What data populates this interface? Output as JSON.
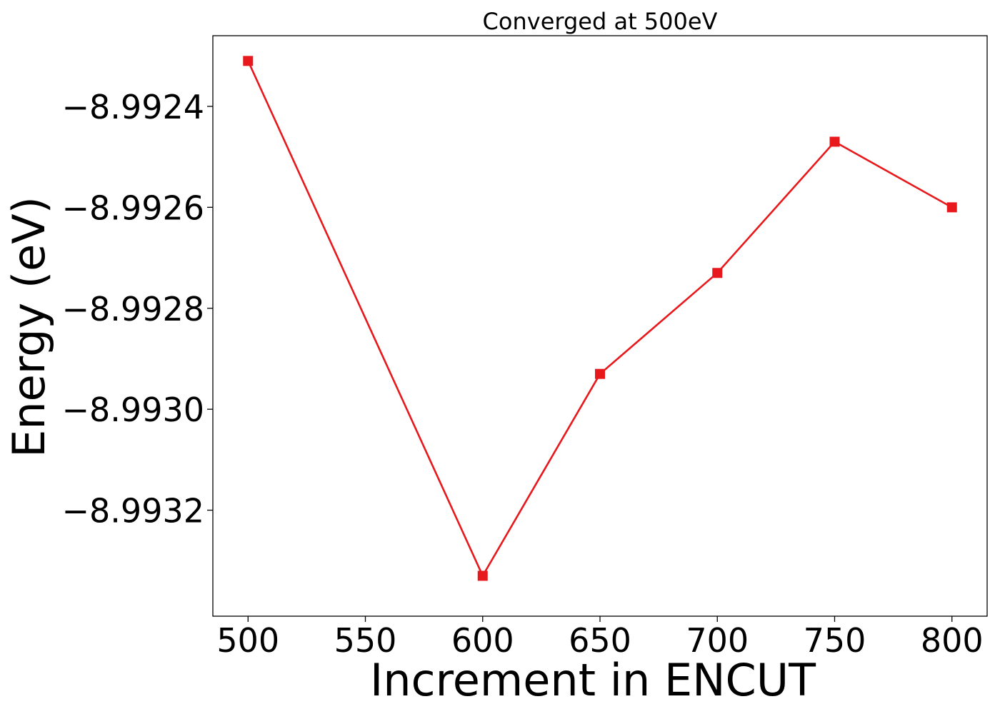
{
  "chart_data": {
    "type": "line",
    "title": "Converged at 500eV",
    "xlabel": "Increment in ENCUT",
    "ylabel": "Energy (eV)",
    "x": [
      500,
      600,
      650,
      700,
      750,
      800
    ],
    "series": [
      {
        "values": [
          -8.99231,
          -8.99333,
          -8.99293,
          -8.99273,
          -8.99247,
          -8.9926
        ],
        "color": "#e8191c",
        "marker": "square"
      }
    ],
    "xticks": [
      500,
      550,
      600,
      650,
      700,
      750,
      800
    ],
    "xtick_labels": [
      "500",
      "550",
      "600",
      "650",
      "700",
      "750",
      "800"
    ],
    "yticks": [
      -8.9924,
      -8.9926,
      -8.9928,
      -8.993,
      -8.9932
    ],
    "ytick_labels": [
      "−8.9924",
      "−8.9926",
      "−8.9928",
      "−8.9930",
      "−8.9932"
    ],
    "xlim": [
      485,
      815
    ],
    "ylim": [
      -8.99341,
      -8.99226
    ],
    "grid": false,
    "legend": "none"
  }
}
